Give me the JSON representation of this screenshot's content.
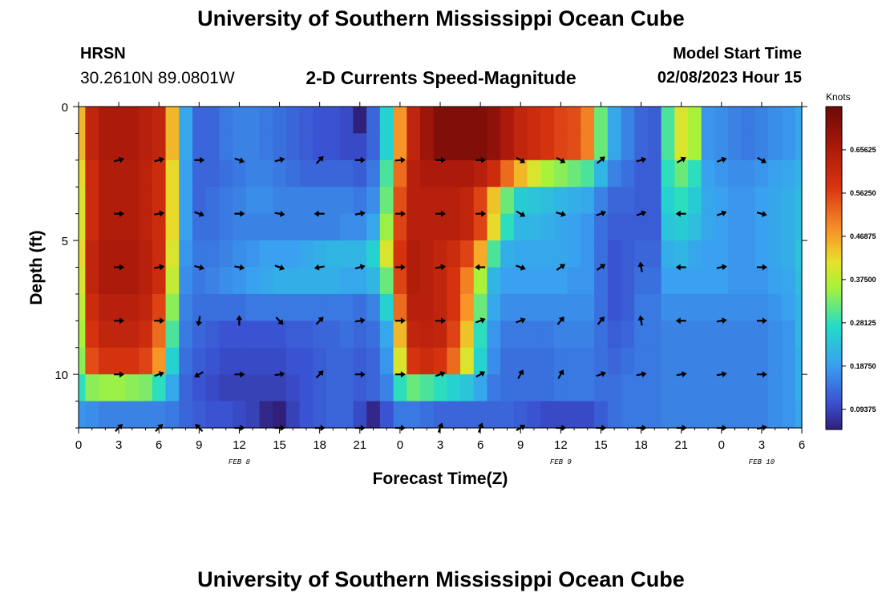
{
  "page": {
    "title": "University of Southern Mississippi Ocean Cube",
    "station_name": "HRSN",
    "station_coords": "30.2610N  89.0801W",
    "model_start_label": "Model Start Time",
    "model_start_value": "02/08/2023 Hour 15",
    "footer_title": "University of Southern Mississippi Ocean Cube"
  },
  "chart_data": {
    "type": "heatmap",
    "title": "2-D Currents Speed-Magnitude",
    "xlabel": "Forecast Time(Z)",
    "ylabel": "Depth (ft)",
    "x_ticks": [
      "0",
      "3",
      "6",
      "9",
      "12",
      "15",
      "18",
      "21",
      "0",
      "3",
      "6",
      "9",
      "12",
      "15",
      "18",
      "21",
      "0",
      "3",
      "6"
    ],
    "x_range_hours": [
      0,
      54
    ],
    "y_ticks": [
      "0",
      "5",
      "10"
    ],
    "y_range_ft": [
      0,
      12
    ],
    "y_inverted": true,
    "date_labels": [
      {
        "label": "FEB 8",
        "hour": 12
      },
      {
        "label": "FEB 9",
        "hour": 36
      },
      {
        "label": "FEB 10",
        "hour": 51
      }
    ],
    "colorbar": {
      "unit": "Knots",
      "range": [
        0.05,
        0.75
      ],
      "tick_values": [
        "0.09375",
        "0.18750",
        "0.28125",
        "0.37500",
        "0.46875",
        "0.56250",
        "0.65625"
      ]
    },
    "depths_ft": [
      0.5,
      1.5,
      2.5,
      3.5,
      4.5,
      5.5,
      6.5,
      7.5,
      8.5,
      9.5,
      10.5,
      11.5
    ],
    "hours": [
      0,
      1,
      2,
      3,
      4,
      5,
      6,
      7,
      8,
      9,
      10,
      11,
      12,
      13,
      14,
      15,
      16,
      17,
      18,
      19,
      20,
      21,
      22,
      23,
      24,
      25,
      26,
      27,
      28,
      29,
      30,
      31,
      32,
      33,
      34,
      35,
      36,
      37,
      38,
      39,
      40,
      41,
      42,
      43,
      44,
      45,
      46,
      47,
      48,
      49,
      50,
      51,
      52,
      53,
      54
    ],
    "speed_knots": [
      [
        0.45,
        0.62,
        0.66,
        0.66,
        0.66,
        0.64,
        0.62,
        0.45,
        0.2,
        0.13,
        0.13,
        0.15,
        0.16,
        0.16,
        0.15,
        0.14,
        0.13,
        0.12,
        0.11,
        0.11,
        0.1,
        0.05,
        0.13,
        0.26,
        0.48,
        0.62,
        0.68,
        0.72,
        0.72,
        0.72,
        0.72,
        0.7,
        0.66,
        0.62,
        0.6,
        0.58,
        0.56,
        0.55,
        0.5,
        0.32,
        0.2,
        0.16,
        0.13,
        0.12,
        0.3,
        0.4,
        0.36,
        0.18,
        0.17,
        0.16,
        0.15,
        0.16,
        0.17,
        0.18,
        0.2
      ],
      [
        0.45,
        0.62,
        0.66,
        0.66,
        0.66,
        0.64,
        0.62,
        0.45,
        0.2,
        0.13,
        0.13,
        0.15,
        0.16,
        0.16,
        0.15,
        0.14,
        0.13,
        0.12,
        0.11,
        0.11,
        0.1,
        0.1,
        0.13,
        0.26,
        0.48,
        0.62,
        0.68,
        0.72,
        0.72,
        0.72,
        0.72,
        0.7,
        0.66,
        0.62,
        0.6,
        0.58,
        0.56,
        0.55,
        0.5,
        0.32,
        0.2,
        0.16,
        0.13,
        0.12,
        0.3,
        0.4,
        0.36,
        0.18,
        0.17,
        0.16,
        0.15,
        0.16,
        0.17,
        0.18,
        0.2
      ],
      [
        0.42,
        0.6,
        0.65,
        0.65,
        0.65,
        0.63,
        0.6,
        0.42,
        0.19,
        0.13,
        0.13,
        0.14,
        0.15,
        0.16,
        0.16,
        0.15,
        0.14,
        0.13,
        0.13,
        0.13,
        0.13,
        0.12,
        0.15,
        0.3,
        0.52,
        0.64,
        0.66,
        0.66,
        0.66,
        0.66,
        0.64,
        0.6,
        0.52,
        0.45,
        0.4,
        0.36,
        0.34,
        0.32,
        0.3,
        0.22,
        0.16,
        0.14,
        0.12,
        0.12,
        0.28,
        0.32,
        0.28,
        0.19,
        0.18,
        0.17,
        0.17,
        0.18,
        0.19,
        0.2,
        0.22
      ],
      [
        0.4,
        0.6,
        0.65,
        0.65,
        0.65,
        0.63,
        0.6,
        0.42,
        0.19,
        0.13,
        0.14,
        0.15,
        0.16,
        0.17,
        0.17,
        0.16,
        0.16,
        0.16,
        0.16,
        0.16,
        0.16,
        0.15,
        0.17,
        0.32,
        0.55,
        0.64,
        0.64,
        0.64,
        0.64,
        0.62,
        0.56,
        0.44,
        0.32,
        0.25,
        0.24,
        0.23,
        0.22,
        0.21,
        0.2,
        0.16,
        0.13,
        0.13,
        0.12,
        0.12,
        0.26,
        0.28,
        0.25,
        0.2,
        0.19,
        0.18,
        0.18,
        0.19,
        0.2,
        0.21,
        0.23
      ],
      [
        0.4,
        0.6,
        0.65,
        0.65,
        0.65,
        0.63,
        0.6,
        0.42,
        0.19,
        0.14,
        0.14,
        0.15,
        0.16,
        0.16,
        0.16,
        0.16,
        0.16,
        0.16,
        0.16,
        0.16,
        0.17,
        0.17,
        0.2,
        0.35,
        0.56,
        0.64,
        0.64,
        0.64,
        0.64,
        0.62,
        0.56,
        0.42,
        0.28,
        0.22,
        0.22,
        0.21,
        0.2,
        0.19,
        0.18,
        0.14,
        0.12,
        0.12,
        0.12,
        0.12,
        0.24,
        0.25,
        0.23,
        0.2,
        0.19,
        0.18,
        0.18,
        0.19,
        0.2,
        0.21,
        0.23
      ],
      [
        0.42,
        0.62,
        0.66,
        0.66,
        0.66,
        0.64,
        0.6,
        0.4,
        0.18,
        0.15,
        0.15,
        0.16,
        0.17,
        0.18,
        0.19,
        0.19,
        0.19,
        0.2,
        0.21,
        0.22,
        0.22,
        0.22,
        0.26,
        0.4,
        0.58,
        0.65,
        0.64,
        0.62,
        0.6,
        0.56,
        0.46,
        0.3,
        0.21,
        0.2,
        0.2,
        0.2,
        0.2,
        0.19,
        0.18,
        0.14,
        0.11,
        0.12,
        0.13,
        0.13,
        0.21,
        0.22,
        0.2,
        0.19,
        0.19,
        0.18,
        0.18,
        0.19,
        0.2,
        0.21,
        0.24
      ],
      [
        0.4,
        0.62,
        0.66,
        0.66,
        0.66,
        0.64,
        0.6,
        0.38,
        0.17,
        0.15,
        0.16,
        0.17,
        0.18,
        0.19,
        0.2,
        0.21,
        0.21,
        0.21,
        0.21,
        0.21,
        0.2,
        0.2,
        0.22,
        0.32,
        0.56,
        0.65,
        0.64,
        0.62,
        0.58,
        0.5,
        0.36,
        0.22,
        0.19,
        0.19,
        0.19,
        0.19,
        0.19,
        0.18,
        0.18,
        0.14,
        0.11,
        0.12,
        0.14,
        0.14,
        0.19,
        0.19,
        0.19,
        0.19,
        0.19,
        0.18,
        0.18,
        0.18,
        0.19,
        0.2,
        0.23
      ],
      [
        0.38,
        0.6,
        0.64,
        0.64,
        0.64,
        0.62,
        0.56,
        0.34,
        0.16,
        0.14,
        0.14,
        0.14,
        0.14,
        0.15,
        0.15,
        0.15,
        0.15,
        0.15,
        0.15,
        0.15,
        0.15,
        0.14,
        0.16,
        0.26,
        0.52,
        0.64,
        0.64,
        0.62,
        0.58,
        0.48,
        0.32,
        0.2,
        0.17,
        0.17,
        0.17,
        0.17,
        0.17,
        0.17,
        0.17,
        0.14,
        0.11,
        0.12,
        0.15,
        0.15,
        0.17,
        0.17,
        0.17,
        0.17,
        0.17,
        0.17,
        0.17,
        0.17,
        0.18,
        0.19,
        0.22
      ],
      [
        0.36,
        0.58,
        0.62,
        0.62,
        0.62,
        0.6,
        0.52,
        0.3,
        0.15,
        0.13,
        0.12,
        0.11,
        0.11,
        0.11,
        0.11,
        0.11,
        0.12,
        0.12,
        0.13,
        0.13,
        0.14,
        0.13,
        0.14,
        0.2,
        0.45,
        0.62,
        0.63,
        0.62,
        0.56,
        0.44,
        0.28,
        0.18,
        0.15,
        0.15,
        0.15,
        0.15,
        0.16,
        0.16,
        0.16,
        0.14,
        0.12,
        0.13,
        0.15,
        0.15,
        0.16,
        0.16,
        0.16,
        0.16,
        0.16,
        0.16,
        0.16,
        0.16,
        0.17,
        0.18,
        0.22
      ],
      [
        0.34,
        0.55,
        0.58,
        0.58,
        0.58,
        0.56,
        0.48,
        0.26,
        0.14,
        0.12,
        0.11,
        0.1,
        0.1,
        0.1,
        0.1,
        0.1,
        0.11,
        0.11,
        0.12,
        0.13,
        0.13,
        0.12,
        0.13,
        0.18,
        0.4,
        0.58,
        0.6,
        0.58,
        0.52,
        0.4,
        0.26,
        0.17,
        0.14,
        0.14,
        0.14,
        0.14,
        0.15,
        0.15,
        0.15,
        0.14,
        0.13,
        0.14,
        0.15,
        0.15,
        0.16,
        0.16,
        0.16,
        0.16,
        0.16,
        0.16,
        0.16,
        0.16,
        0.17,
        0.18,
        0.21
      ],
      [
        0.28,
        0.34,
        0.35,
        0.35,
        0.34,
        0.33,
        0.28,
        0.2,
        0.13,
        0.11,
        0.1,
        0.09,
        0.09,
        0.09,
        0.09,
        0.09,
        0.1,
        0.11,
        0.12,
        0.13,
        0.13,
        0.12,
        0.13,
        0.16,
        0.28,
        0.32,
        0.3,
        0.28,
        0.26,
        0.24,
        0.2,
        0.15,
        0.14,
        0.14,
        0.14,
        0.14,
        0.15,
        0.15,
        0.15,
        0.14,
        0.14,
        0.15,
        0.15,
        0.15,
        0.16,
        0.16,
        0.16,
        0.16,
        0.16,
        0.16,
        0.16,
        0.16,
        0.17,
        0.18,
        0.21
      ],
      [
        0.18,
        0.17,
        0.16,
        0.16,
        0.16,
        0.16,
        0.16,
        0.15,
        0.13,
        0.12,
        0.11,
        0.11,
        0.1,
        0.09,
        0.06,
        0.05,
        0.09,
        0.11,
        0.12,
        0.13,
        0.13,
        0.1,
        0.06,
        0.11,
        0.15,
        0.15,
        0.14,
        0.13,
        0.13,
        0.13,
        0.13,
        0.13,
        0.13,
        0.12,
        0.11,
        0.1,
        0.1,
        0.1,
        0.1,
        0.12,
        0.14,
        0.15,
        0.15,
        0.15,
        0.16,
        0.16,
        0.16,
        0.16,
        0.16,
        0.16,
        0.16,
        0.16,
        0.17,
        0.18,
        0.2
      ]
    ],
    "arrow_hours": [
      3,
      6,
      9,
      12,
      15,
      18,
      21,
      24,
      27,
      30,
      33,
      36,
      39,
      42,
      45,
      48,
      51
    ],
    "arrow_depths_ft": [
      2,
      4,
      6,
      8,
      10,
      12
    ],
    "arrow_angles_deg": [
      [
        -15,
        -15,
        0,
        20,
        -15,
        -45,
        0,
        -5,
        0,
        0,
        30,
        30,
        -40,
        -15,
        -30,
        -20,
        30
      ],
      [
        0,
        -10,
        20,
        0,
        10,
        180,
        -10,
        0,
        0,
        0,
        30,
        15,
        -20,
        -20,
        180,
        -20,
        15
      ],
      [
        0,
        -10,
        15,
        10,
        20,
        170,
        -15,
        0,
        -10,
        180,
        20,
        -35,
        -35,
        -100,
        180,
        -10,
        0
      ],
      [
        0,
        0,
        100,
        -90,
        45,
        -45,
        -10,
        0,
        0,
        -20,
        -20,
        -50,
        -50,
        -100,
        180,
        -10,
        0
      ],
      [
        0,
        -20,
        150,
        0,
        -10,
        -45,
        0,
        0,
        -20,
        -30,
        -60,
        -60,
        -20,
        -10,
        -10,
        -10,
        0
      ],
      [
        -45,
        -45,
        -135,
        0,
        0,
        0,
        0,
        0,
        -70,
        -70,
        -30,
        0,
        0,
        0,
        0,
        0,
        -10
      ]
    ]
  }
}
